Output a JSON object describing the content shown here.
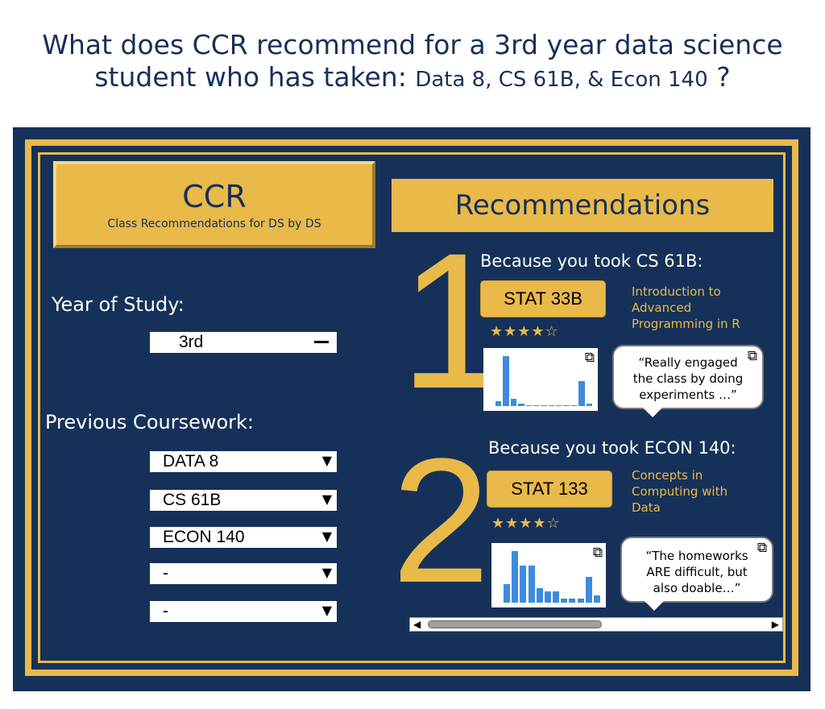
{
  "question": {
    "line1": "What does CCR recommend for a 3rd year data science",
    "line2_prefix": "student who has taken: ",
    "line2_courses": "Data 8, CS 61B, & Econ 140",
    "line2_suffix": " ?"
  },
  "logo": {
    "title": "CCR",
    "subtitle": "Class Recommendations for DS by DS"
  },
  "form": {
    "year_label": "Year of Study:",
    "year_value": "3rd",
    "coursework_label": "Previous Coursework:",
    "courses": [
      "DATA  8",
      "CS 61B",
      "ECON 140",
      "-",
      "-"
    ]
  },
  "recommendations": {
    "header": "Recommendations",
    "items": [
      {
        "number": "1",
        "because": "Because you took CS 61B:",
        "course": "STAT  33B",
        "description": [
          "Introduction to",
          "Advanced",
          "Programming in R"
        ],
        "stars": "★★★★☆",
        "rating": 4,
        "review": [
          "“Really engaged",
          "the class by doing",
          "experiments …”"
        ],
        "histogram": [
          2,
          20,
          3,
          1,
          0,
          0,
          0,
          0,
          0,
          0,
          0,
          10,
          1
        ]
      },
      {
        "number": "2",
        "because": "Because you took ECON 140:",
        "course": "STAT  133",
        "description": [
          "Concepts in",
          "Computing with",
          "Data"
        ],
        "stars": "★★★★☆",
        "rating": 4,
        "review": [
          "“The homeworks",
          "ARE difficult, but",
          "also doable…”"
        ],
        "histogram": [
          5,
          14,
          10,
          10,
          4,
          3,
          3,
          1,
          1,
          1,
          7,
          2
        ]
      }
    ]
  },
  "icons": {
    "external_link": "external-link-icon",
    "dropdown": "triangle-down-icon"
  },
  "colors": {
    "navy": "#163159",
    "gold": "#e9b949",
    "bar_blue": "#3d8bdf"
  }
}
